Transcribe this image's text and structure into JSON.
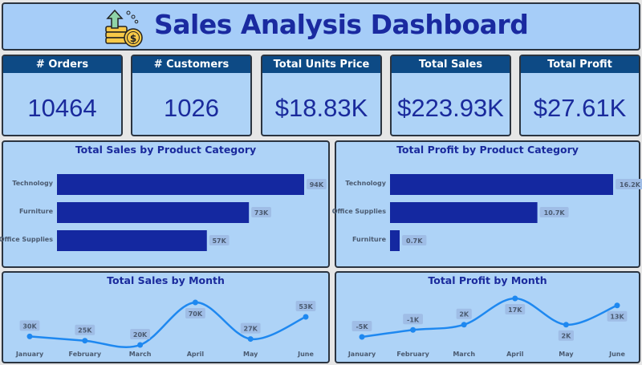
{
  "header": {
    "title": "Sales Analysis Dashboard",
    "icon": "money-growth-icon"
  },
  "kpis": [
    {
      "label": "# Orders",
      "value": "10464"
    },
    {
      "label": "# Customers",
      "value": "1026"
    },
    {
      "label": "Total Units Price",
      "value": "$18.83K"
    },
    {
      "label": "Total Sales",
      "value": "$223.93K"
    },
    {
      "label": "Total Profit",
      "value": "$27.61K"
    }
  ],
  "colors": {
    "bar": "#1428a0",
    "line": "#1e88f0",
    "title": "#1a2a9c",
    "kpi_header": "#0d4a85",
    "panel": "#aed3f7"
  },
  "chart_data": [
    {
      "type": "bar",
      "orientation": "horizontal",
      "title": "Total Sales by Product Category",
      "categories": [
        "Technology",
        "Furniture",
        "Office Supplies"
      ],
      "values": [
        94,
        73,
        57
      ],
      "labels": [
        "94K",
        "73K",
        "57K"
      ],
      "unit": "K"
    },
    {
      "type": "bar",
      "orientation": "horizontal",
      "title": "Total Profit by Product Category",
      "categories": [
        "Technology",
        "Office Supplies",
        "Furniture"
      ],
      "values": [
        16.2,
        10.7,
        0.7
      ],
      "labels": [
        "16.2K",
        "10.7K",
        "0.7K"
      ],
      "unit": "K"
    },
    {
      "type": "line",
      "smooth": true,
      "title": "Total Sales by Month",
      "categories": [
        "January",
        "February",
        "March",
        "April",
        "May",
        "June"
      ],
      "values": [
        30,
        25,
        20,
        70,
        27,
        53
      ],
      "labels": [
        "30K",
        "25K",
        "20K",
        "70K",
        "27K",
        "53K"
      ],
      "label_pos": [
        "above",
        "above",
        "above",
        "below",
        "above",
        "above"
      ]
    },
    {
      "type": "line",
      "smooth": true,
      "title": "Total Profit by Month",
      "categories": [
        "January",
        "February",
        "March",
        "April",
        "May",
        "June"
      ],
      "values": [
        -5,
        -1,
        2,
        17,
        2,
        13
      ],
      "labels": [
        "-5K",
        "-1K",
        "2K",
        "17K",
        "2K",
        "13K"
      ],
      "label_pos": [
        "above",
        "above",
        "above",
        "below",
        "below",
        "below"
      ]
    }
  ]
}
